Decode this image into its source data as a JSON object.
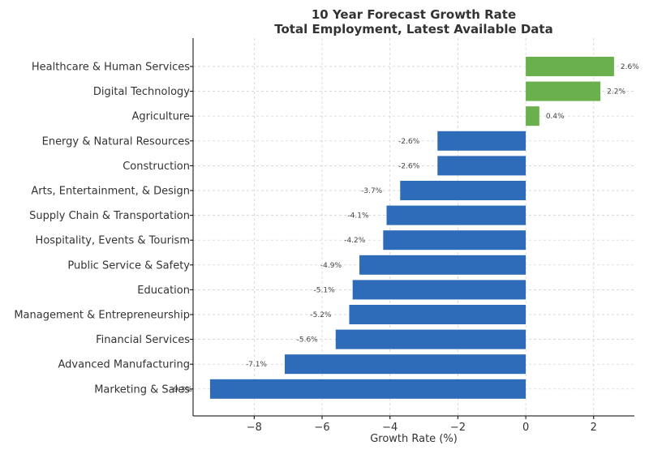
{
  "chart_data": {
    "type": "bar",
    "orientation": "horizontal",
    "title_line1": "10 Year Forecast Growth Rate",
    "title_line2": "Total Employment, Latest Available Data",
    "xlabel": "Growth Rate (%)",
    "ylabel": "",
    "xlim": [
      -9.8,
      3.2
    ],
    "xticks": [
      -8,
      -6,
      -4,
      -2,
      0,
      2
    ],
    "xtick_labels": [
      "−8",
      "−6",
      "−4",
      "−2",
      "0",
      "2"
    ],
    "grid": true,
    "positive_color": "#6ab04c",
    "negative_color": "#2e6bb8",
    "categories": [
      "Healthcare & Human Services",
      "Digital Technology",
      "Agriculture",
      "Energy & Natural Resources",
      "Construction",
      "Arts, Entertainment, & Design",
      "Supply Chain & Transportation",
      "Hospitality, Events & Tourism",
      "Public Service & Safety",
      "Education",
      "Management & Entrepreneurship",
      "Financial Services",
      "Advanced Manufacturing",
      "Marketing & Sales"
    ],
    "values": [
      2.6,
      2.2,
      0.4,
      -2.6,
      -2.6,
      -3.7,
      -4.1,
      -4.2,
      -4.9,
      -5.1,
      -5.2,
      -5.6,
      -7.1,
      -9.3
    ],
    "value_labels": [
      "2.6%",
      "2.2%",
      "0.4%",
      "-2.6%",
      "-2.6%",
      "-3.7%",
      "-4.1%",
      "-4.2%",
      "-4.9%",
      "-5.1%",
      "-5.2%",
      "-5.6%",
      "-7.1%",
      "-9.3%"
    ]
  }
}
